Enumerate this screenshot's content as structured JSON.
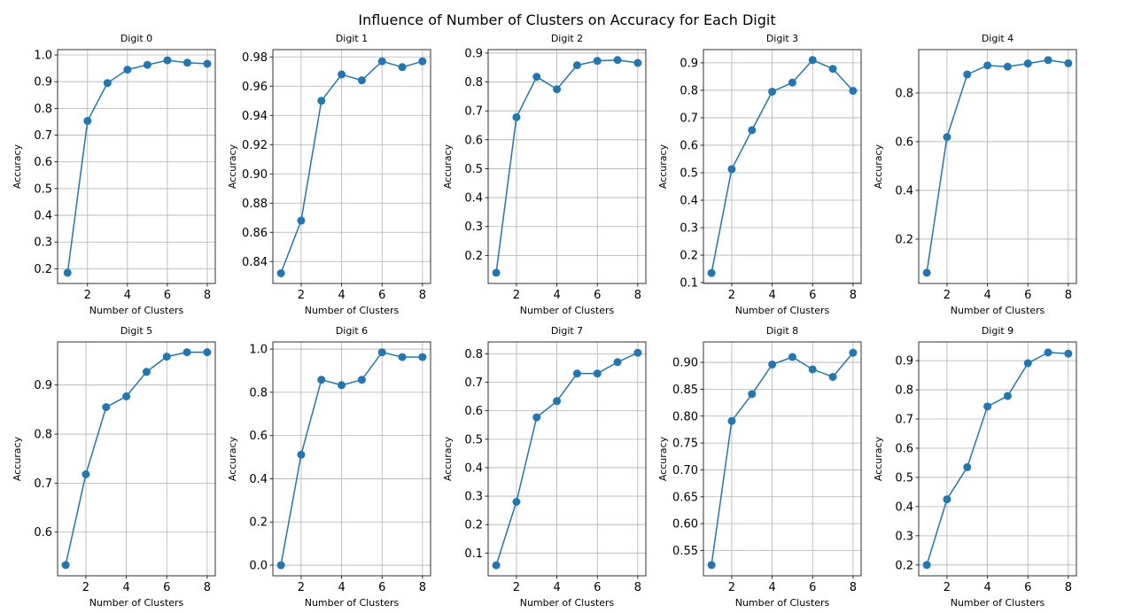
{
  "figure_title": "Influence of Number of Clusters on Accuracy for Each Digit",
  "line_color": "#1f77b4",
  "chart_data": [
    {
      "type": "line",
      "title": "Digit 0",
      "xlabel": "Number of Clusters",
      "ylabel": "Accuracy",
      "x": [
        1,
        2,
        3,
        4,
        5,
        6,
        7,
        8
      ],
      "y": [
        0.185,
        0.753,
        0.895,
        0.945,
        0.963,
        0.98,
        0.971,
        0.967
      ],
      "xlim": [
        0.5,
        8.4
      ],
      "ylim": [
        0.145,
        1.02
      ],
      "xticks": [
        2,
        4,
        6,
        8
      ],
      "yticks": [
        0.2,
        0.3,
        0.4,
        0.5,
        0.6,
        0.7,
        0.8,
        0.9,
        1.0
      ],
      "ytick_labels": [
        "0.2",
        "0.3",
        "0.4",
        "0.5",
        "0.6",
        "0.7",
        "0.8",
        "0.9",
        "1.0"
      ],
      "grid": true
    },
    {
      "type": "line",
      "title": "Digit 1",
      "xlabel": "Number of Clusters",
      "ylabel": "Accuracy",
      "x": [
        1,
        2,
        3,
        4,
        5,
        6,
        7,
        8
      ],
      "y": [
        0.832,
        0.868,
        0.95,
        0.968,
        0.964,
        0.977,
        0.973,
        0.977
      ],
      "xlim": [
        0.6,
        8.4
      ],
      "ylim": [
        0.825,
        0.985
      ],
      "xticks": [
        2,
        4,
        6,
        8
      ],
      "yticks": [
        0.84,
        0.86,
        0.88,
        0.9,
        0.92,
        0.94,
        0.96,
        0.98
      ],
      "ytick_labels": [
        "0.84",
        "0.86",
        "0.88",
        "0.90",
        "0.92",
        "0.94",
        "0.96",
        "0.98"
      ],
      "grid": true
    },
    {
      "type": "line",
      "title": "Digit 2",
      "xlabel": "Number of Clusters",
      "ylabel": "Accuracy",
      "x": [
        1,
        2,
        3,
        4,
        5,
        6,
        7,
        8
      ],
      "y": [
        0.14,
        0.678,
        0.818,
        0.775,
        0.858,
        0.873,
        0.876,
        0.866
      ],
      "xlim": [
        0.6,
        8.4
      ],
      "ylim": [
        0.103,
        0.912
      ],
      "xticks": [
        2,
        4,
        6,
        8
      ],
      "yticks": [
        0.2,
        0.3,
        0.4,
        0.5,
        0.6,
        0.7,
        0.8,
        0.9
      ],
      "ytick_labels": [
        "0.2",
        "0.3",
        "0.4",
        "0.5",
        "0.6",
        "0.7",
        "0.8",
        "0.9"
      ],
      "grid": true
    },
    {
      "type": "line",
      "title": "Digit 3",
      "xlabel": "Number of Clusters",
      "ylabel": "Accuracy",
      "x": [
        1,
        2,
        3,
        4,
        5,
        6,
        7,
        8
      ],
      "y": [
        0.135,
        0.513,
        0.655,
        0.795,
        0.828,
        0.91,
        0.878,
        0.798
      ],
      "xlim": [
        0.6,
        8.4
      ],
      "ylim": [
        0.097,
        0.948
      ],
      "xticks": [
        2,
        4,
        6,
        8
      ],
      "yticks": [
        0.1,
        0.2,
        0.3,
        0.4,
        0.5,
        0.6,
        0.7,
        0.8,
        0.9
      ],
      "ytick_labels": [
        "0.1",
        "0.2",
        "0.3",
        "0.4",
        "0.5",
        "0.6",
        "0.7",
        "0.8",
        "0.9"
      ],
      "grid": true
    },
    {
      "type": "line",
      "title": "Digit 4",
      "xlabel": "Number of Clusters",
      "ylabel": "Accuracy",
      "x": [
        1,
        2,
        3,
        4,
        5,
        6,
        7,
        8
      ],
      "y": [
        0.062,
        0.619,
        0.876,
        0.913,
        0.908,
        0.921,
        0.935,
        0.922
      ],
      "xlim": [
        0.6,
        8.4
      ],
      "ylim": [
        0.018,
        0.978
      ],
      "xticks": [
        2,
        4,
        6,
        8
      ],
      "yticks": [
        0.2,
        0.4,
        0.6,
        0.8
      ],
      "ytick_labels": [
        "0.2",
        "0.4",
        "0.6",
        "0.8"
      ],
      "grid": true
    },
    {
      "type": "line",
      "title": "Digit 5",
      "xlabel": "Number of Clusters",
      "ylabel": "Accuracy",
      "x": [
        1,
        2,
        3,
        4,
        5,
        6,
        7,
        8
      ],
      "y": [
        0.533,
        0.718,
        0.855,
        0.877,
        0.927,
        0.958,
        0.967,
        0.967
      ],
      "xlim": [
        0.6,
        8.4
      ],
      "ylim": [
        0.511,
        0.988
      ],
      "xticks": [
        2,
        4,
        6,
        8
      ],
      "yticks": [
        0.6,
        0.7,
        0.8,
        0.9
      ],
      "ytick_labels": [
        "0.6",
        "0.7",
        "0.8",
        "0.9"
      ],
      "grid": true
    },
    {
      "type": "line",
      "title": "Digit 6",
      "xlabel": "Number of Clusters",
      "ylabel": "Accuracy",
      "x": [
        1,
        2,
        3,
        4,
        5,
        6,
        7,
        8
      ],
      "y": [
        0.0,
        0.511,
        0.858,
        0.833,
        0.858,
        0.985,
        0.963,
        0.963
      ],
      "xlim": [
        0.6,
        8.4
      ],
      "ylim": [
        -0.049,
        1.033
      ],
      "xticks": [
        2,
        4,
        6,
        8
      ],
      "yticks": [
        0.0,
        0.2,
        0.4,
        0.6,
        0.8,
        1.0
      ],
      "ytick_labels": [
        "0.0",
        "0.2",
        "0.4",
        "0.6",
        "0.8",
        "1.0"
      ],
      "grid": true
    },
    {
      "type": "line",
      "title": "Digit 7",
      "xlabel": "Number of Clusters",
      "ylabel": "Accuracy",
      "x": [
        1,
        2,
        3,
        4,
        5,
        6,
        7,
        8
      ],
      "y": [
        0.057,
        0.28,
        0.577,
        0.634,
        0.731,
        0.731,
        0.771,
        0.804
      ],
      "xlim": [
        0.6,
        8.4
      ],
      "ylim": [
        0.02,
        0.842
      ],
      "xticks": [
        2,
        4,
        6,
        8
      ],
      "yticks": [
        0.1,
        0.2,
        0.3,
        0.4,
        0.5,
        0.6,
        0.7,
        0.8
      ],
      "ytick_labels": [
        "0.1",
        "0.2",
        "0.3",
        "0.4",
        "0.5",
        "0.6",
        "0.7",
        "0.8"
      ],
      "grid": true
    },
    {
      "type": "line",
      "title": "Digit 8",
      "xlabel": "Number of Clusters",
      "ylabel": "Accuracy",
      "x": [
        1,
        2,
        3,
        4,
        5,
        6,
        7,
        8
      ],
      "y": [
        0.523,
        0.791,
        0.841,
        0.896,
        0.91,
        0.887,
        0.873,
        0.918
      ],
      "xlim": [
        0.6,
        8.4
      ],
      "ylim": [
        0.503,
        0.938
      ],
      "xticks": [
        2,
        4,
        6,
        8
      ],
      "yticks": [
        0.55,
        0.6,
        0.65,
        0.7,
        0.75,
        0.8,
        0.85,
        0.9
      ],
      "ytick_labels": [
        "0.55",
        "0.60",
        "0.65",
        "0.70",
        "0.75",
        "0.80",
        "0.85",
        "0.90"
      ],
      "grid": true
    },
    {
      "type": "line",
      "title": "Digit 9",
      "xlabel": "Number of Clusters",
      "ylabel": "Accuracy",
      "x": [
        1,
        2,
        3,
        4,
        5,
        6,
        7,
        8
      ],
      "y": [
        0.2,
        0.425,
        0.535,
        0.743,
        0.779,
        0.891,
        0.928,
        0.924
      ],
      "xlim": [
        0.6,
        8.4
      ],
      "ylim": [
        0.163,
        0.964
      ],
      "xticks": [
        2,
        4,
        6,
        8
      ],
      "yticks": [
        0.2,
        0.3,
        0.4,
        0.5,
        0.6,
        0.7,
        0.8,
        0.9
      ],
      "ytick_labels": [
        "0.2",
        "0.3",
        "0.4",
        "0.5",
        "0.6",
        "0.7",
        "0.8",
        "0.9"
      ],
      "grid": true
    }
  ]
}
